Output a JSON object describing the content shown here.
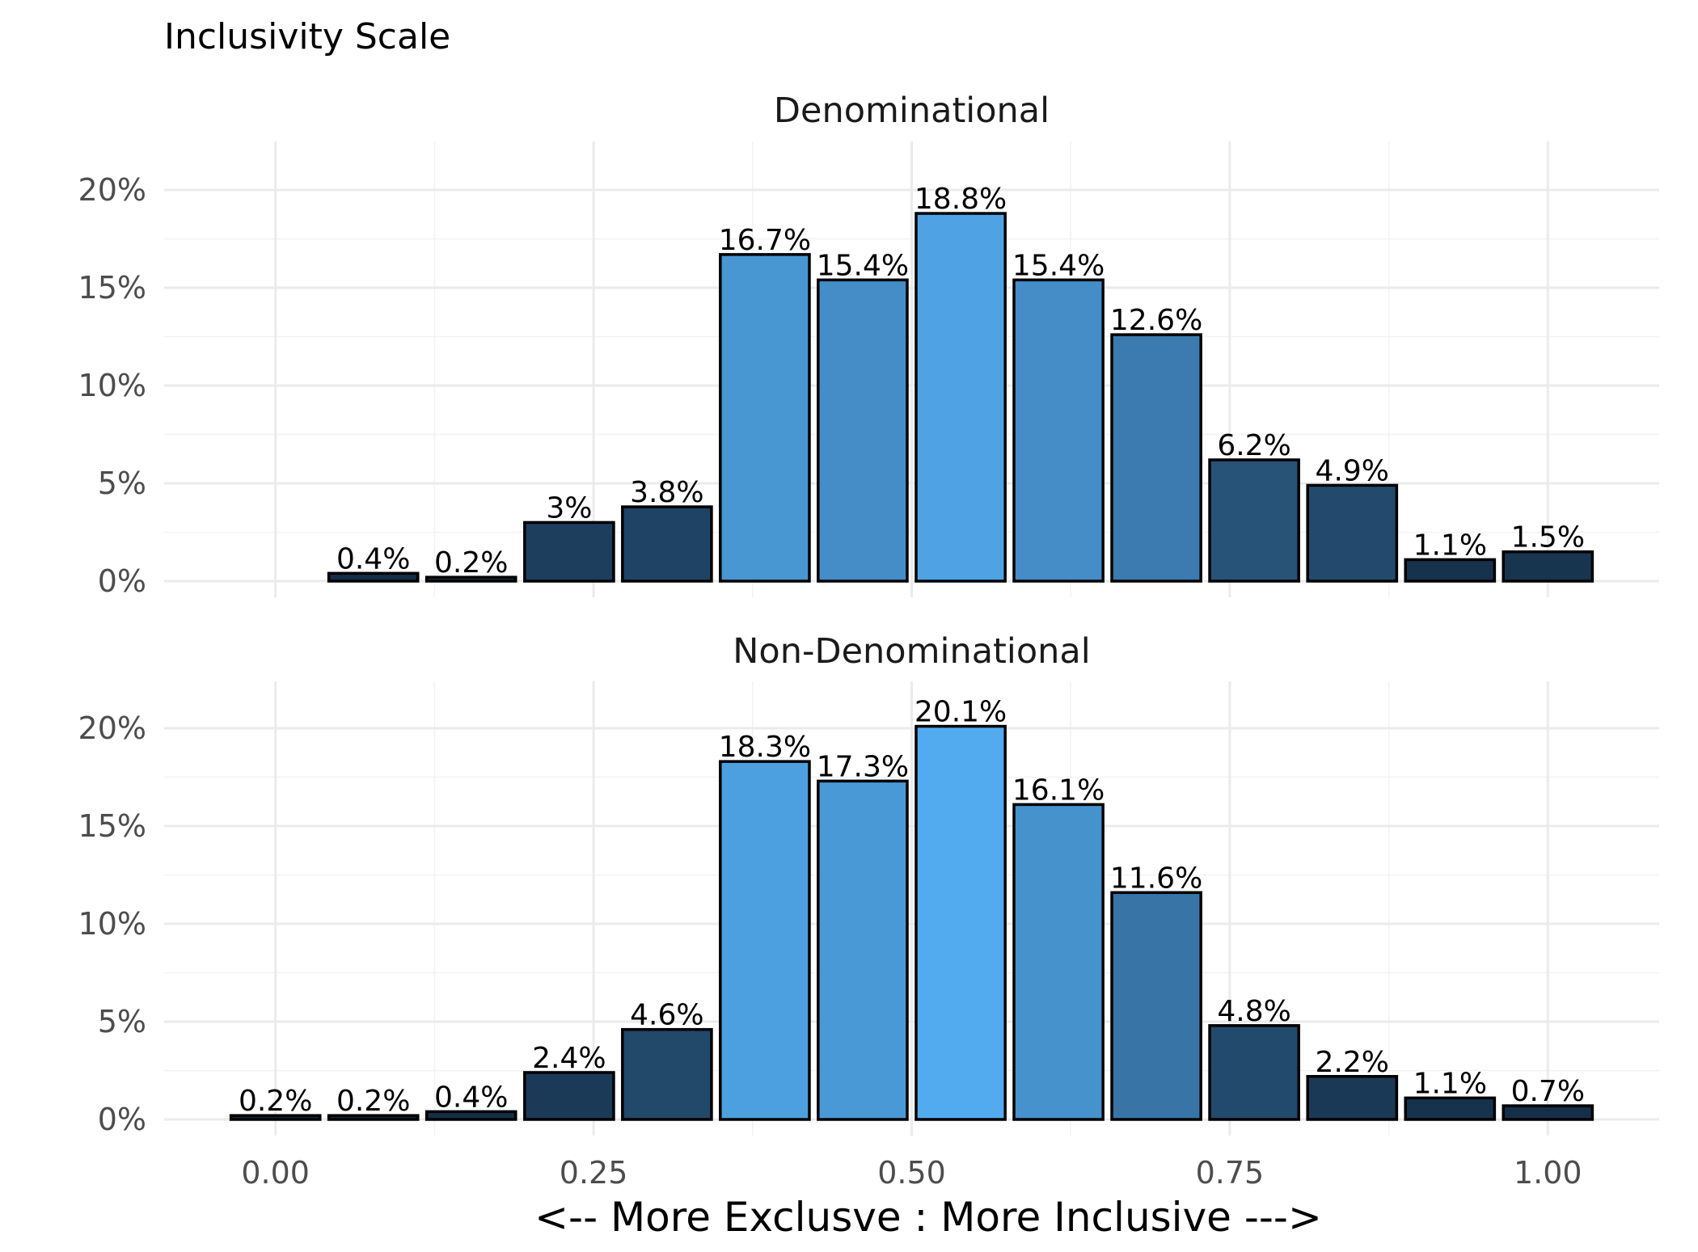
{
  "chart_data": {
    "type": "bar",
    "title": "Inclusivity Scale",
    "xlabel": "<-- More Exclusve : More Inclusive --->",
    "ylabel": "",
    "xlim": [
      -0.0875,
      1.0875
    ],
    "ylim": [
      0,
      21
    ],
    "x_ticks": [
      0,
      0.25,
      0.5,
      0.75,
      1
    ],
    "x_tick_labels": [
      "0.00",
      "0.25",
      "0.50",
      "0.75",
      "1.00"
    ],
    "y_ticks": [
      0,
      5,
      10,
      15,
      20
    ],
    "y_tick_labels": [
      "0%",
      "5%",
      "10%",
      "15%",
      "20%"
    ],
    "grid": true,
    "legend": "none",
    "bar_width": 0.07,
    "color_low": "#132B43",
    "color_high": "#56B1F7",
    "bar_outline": "#000000",
    "panels": [
      {
        "name": "Denominational",
        "x": [
          0.0769,
          0.1538,
          0.2308,
          0.3077,
          0.3846,
          0.4615,
          0.5385,
          0.6154,
          0.6923,
          0.7692,
          0.8462,
          0.9231,
          1.0
        ],
        "values": [
          0.4,
          0.2,
          3.0,
          3.8,
          16.7,
          15.4,
          18.8,
          15.4,
          12.6,
          6.2,
          4.9,
          1.1,
          1.5
        ],
        "labels": [
          "0.4%",
          "0.2%",
          "3%",
          "3.8%",
          "16.7%",
          "15.4%",
          "18.8%",
          "15.4%",
          "12.6%",
          "6.2%",
          "4.9%",
          "1.1%",
          "1.5%"
        ]
      },
      {
        "name": "Non-Denominational",
        "x": [
          0.0,
          0.0769,
          0.1538,
          0.2308,
          0.3077,
          0.3846,
          0.4615,
          0.5385,
          0.6154,
          0.6923,
          0.7692,
          0.8462,
          0.9231,
          1.0
        ],
        "values": [
          0.2,
          0.2,
          0.4,
          2.4,
          4.6,
          18.3,
          17.3,
          20.1,
          16.1,
          11.6,
          4.8,
          2.2,
          1.1,
          0.7
        ],
        "labels": [
          "0.2%",
          "0.2%",
          "0.4%",
          "2.4%",
          "4.6%",
          "18.3%",
          "17.3%",
          "20.1%",
          "16.1%",
          "11.6%",
          "4.8%",
          "2.2%",
          "1.1%",
          "0.7%"
        ]
      }
    ]
  }
}
